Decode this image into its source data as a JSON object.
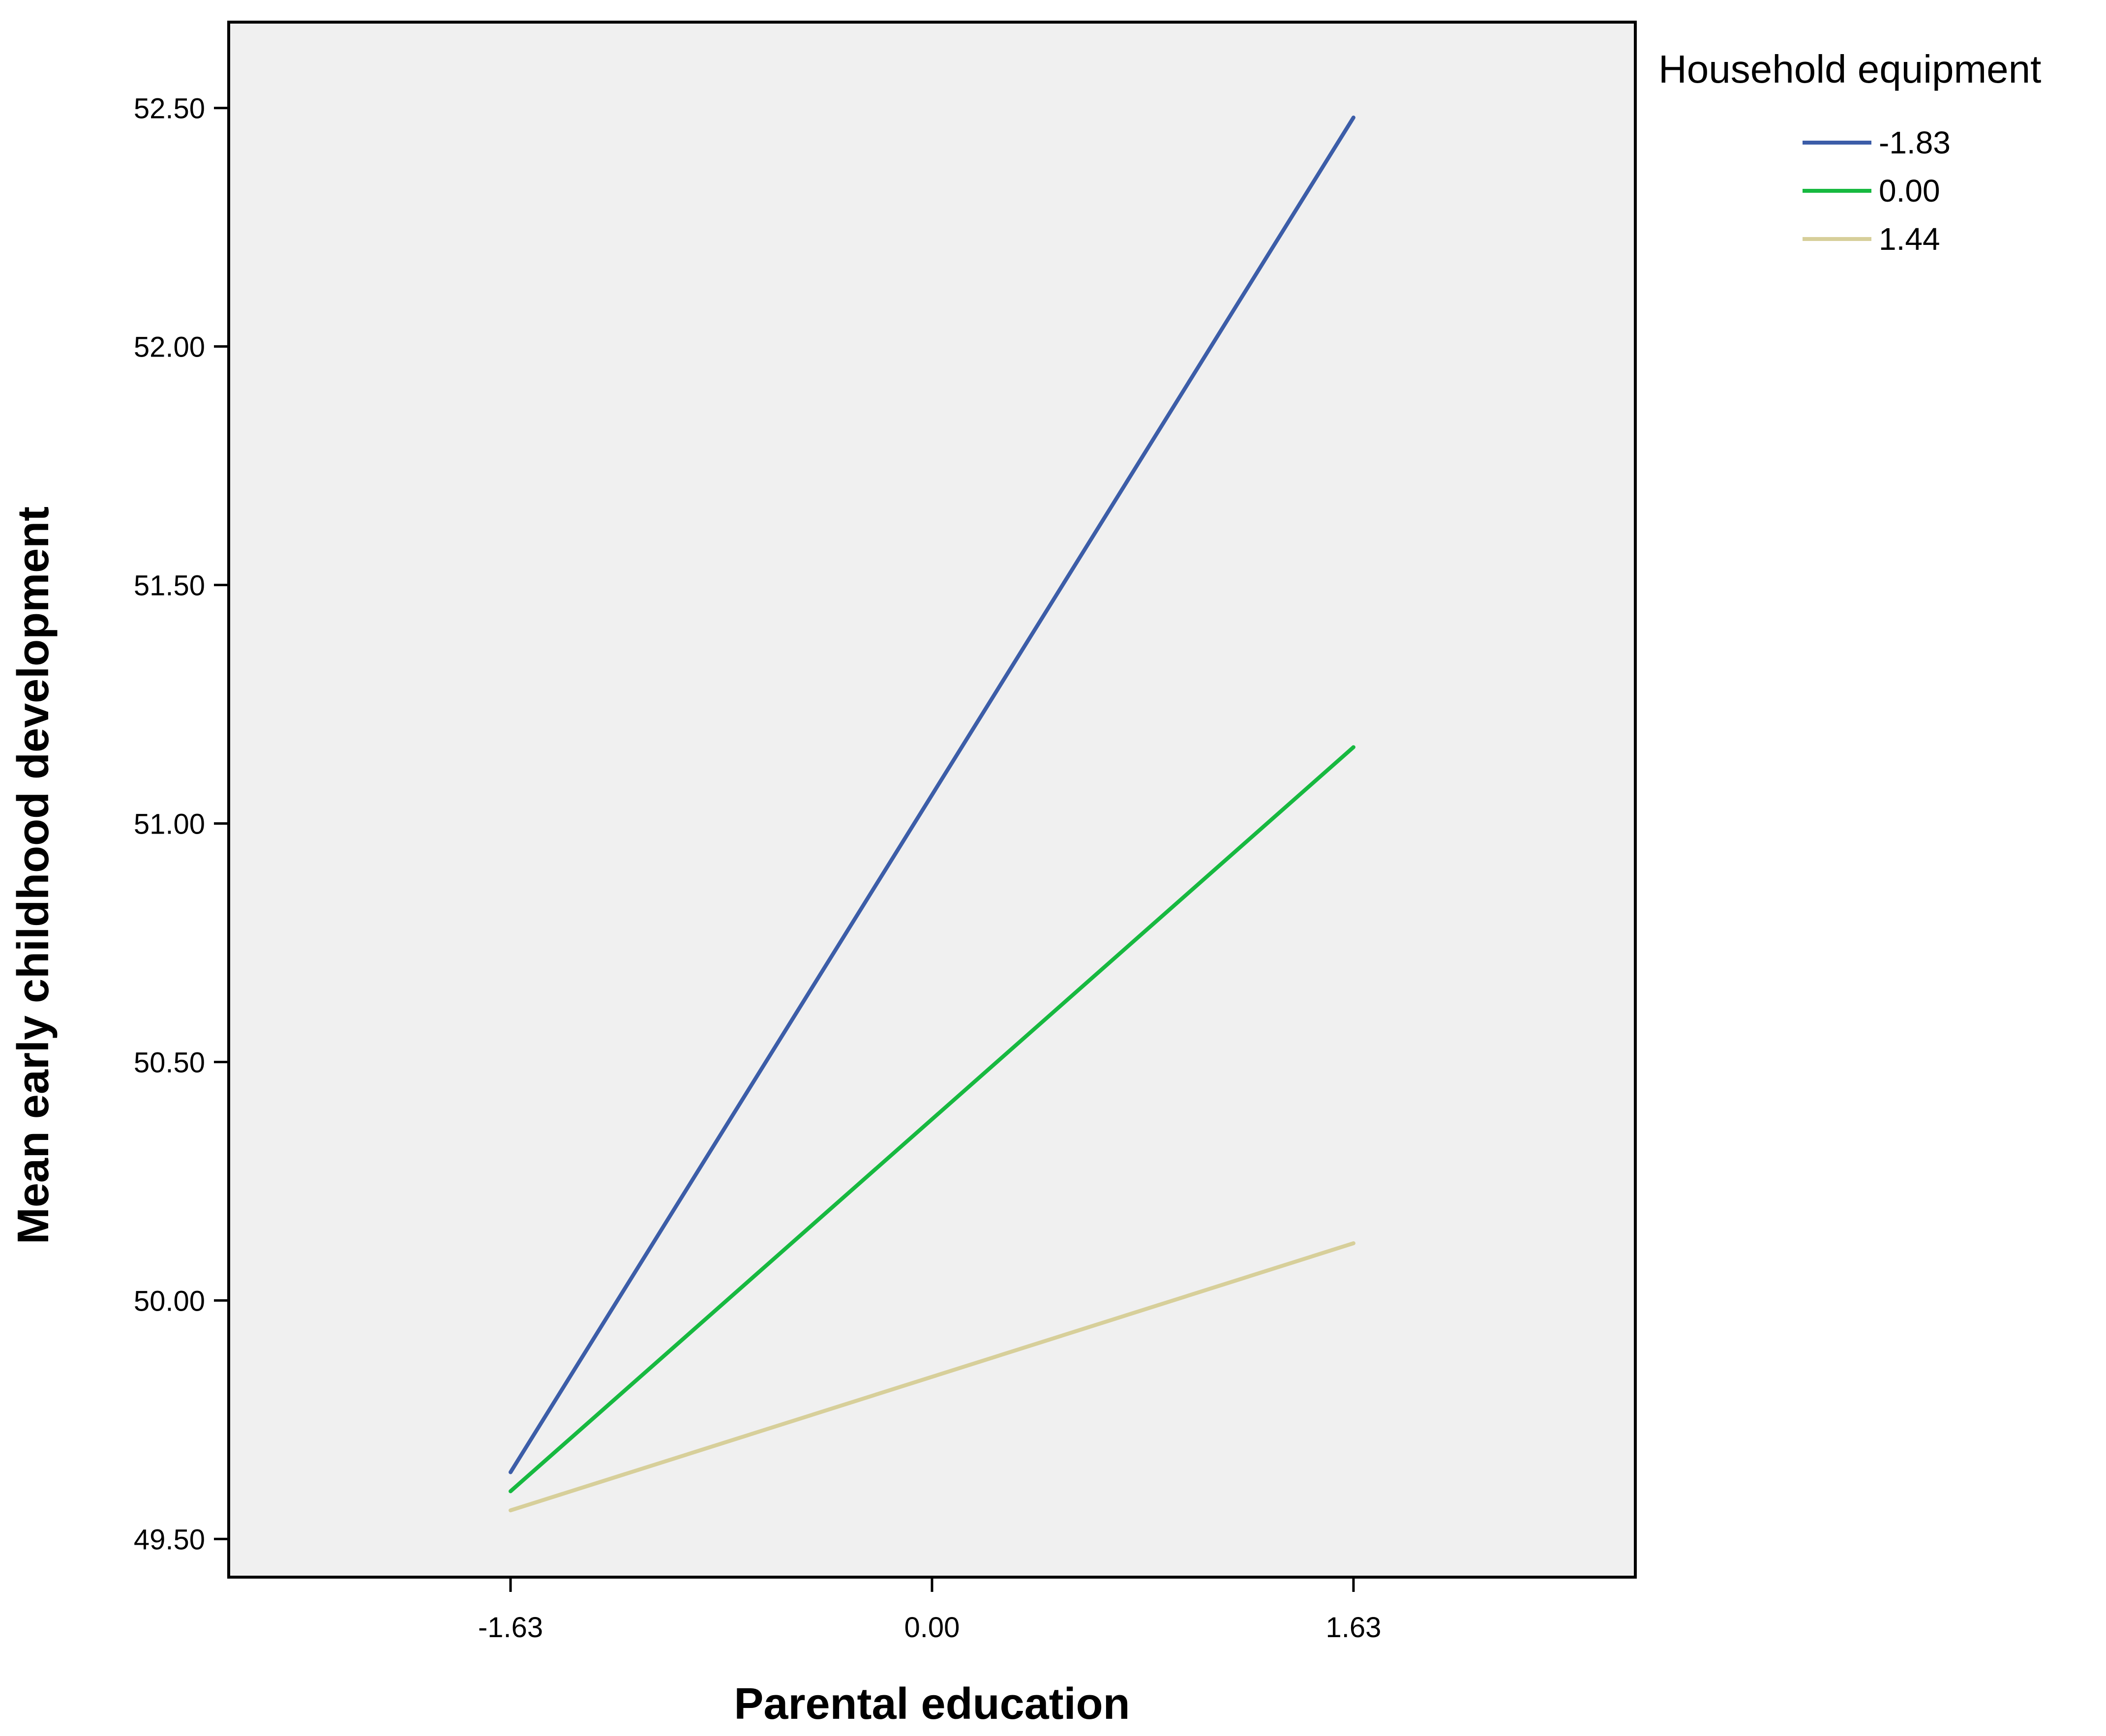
{
  "chart_data": {
    "type": "line",
    "xlabel": "Parental education",
    "ylabel": "Mean early childhood development",
    "x": [
      -1.63,
      1.63
    ],
    "x_tick_labels": [
      "-1.63",
      "0.00",
      "1.63"
    ],
    "x_ticks": [
      -1.63,
      0.0,
      1.63
    ],
    "xlim": [
      -2.72,
      2.72
    ],
    "ylim": [
      49.42,
      52.68
    ],
    "y_ticks": [
      49.5,
      50.0,
      50.5,
      51.0,
      51.5,
      52.0,
      52.5
    ],
    "y_tick_labels": [
      "49.50",
      "50.00",
      "50.50",
      "51.00",
      "51.50",
      "52.00",
      "52.50"
    ],
    "legend_title": "Household equipment",
    "legend_position": "top-right, outside plot",
    "plot_background": "#f0f0f0",
    "grid": false,
    "series": [
      {
        "name": "-1.83",
        "color": "#3c5da8",
        "values": [
          49.64,
          52.48
        ]
      },
      {
        "name": "0.00",
        "color": "#17b940",
        "values": [
          49.6,
          51.16
        ]
      },
      {
        "name": "1.44",
        "color": "#d7cf9a",
        "values": [
          49.56,
          50.12
        ]
      }
    ]
  }
}
